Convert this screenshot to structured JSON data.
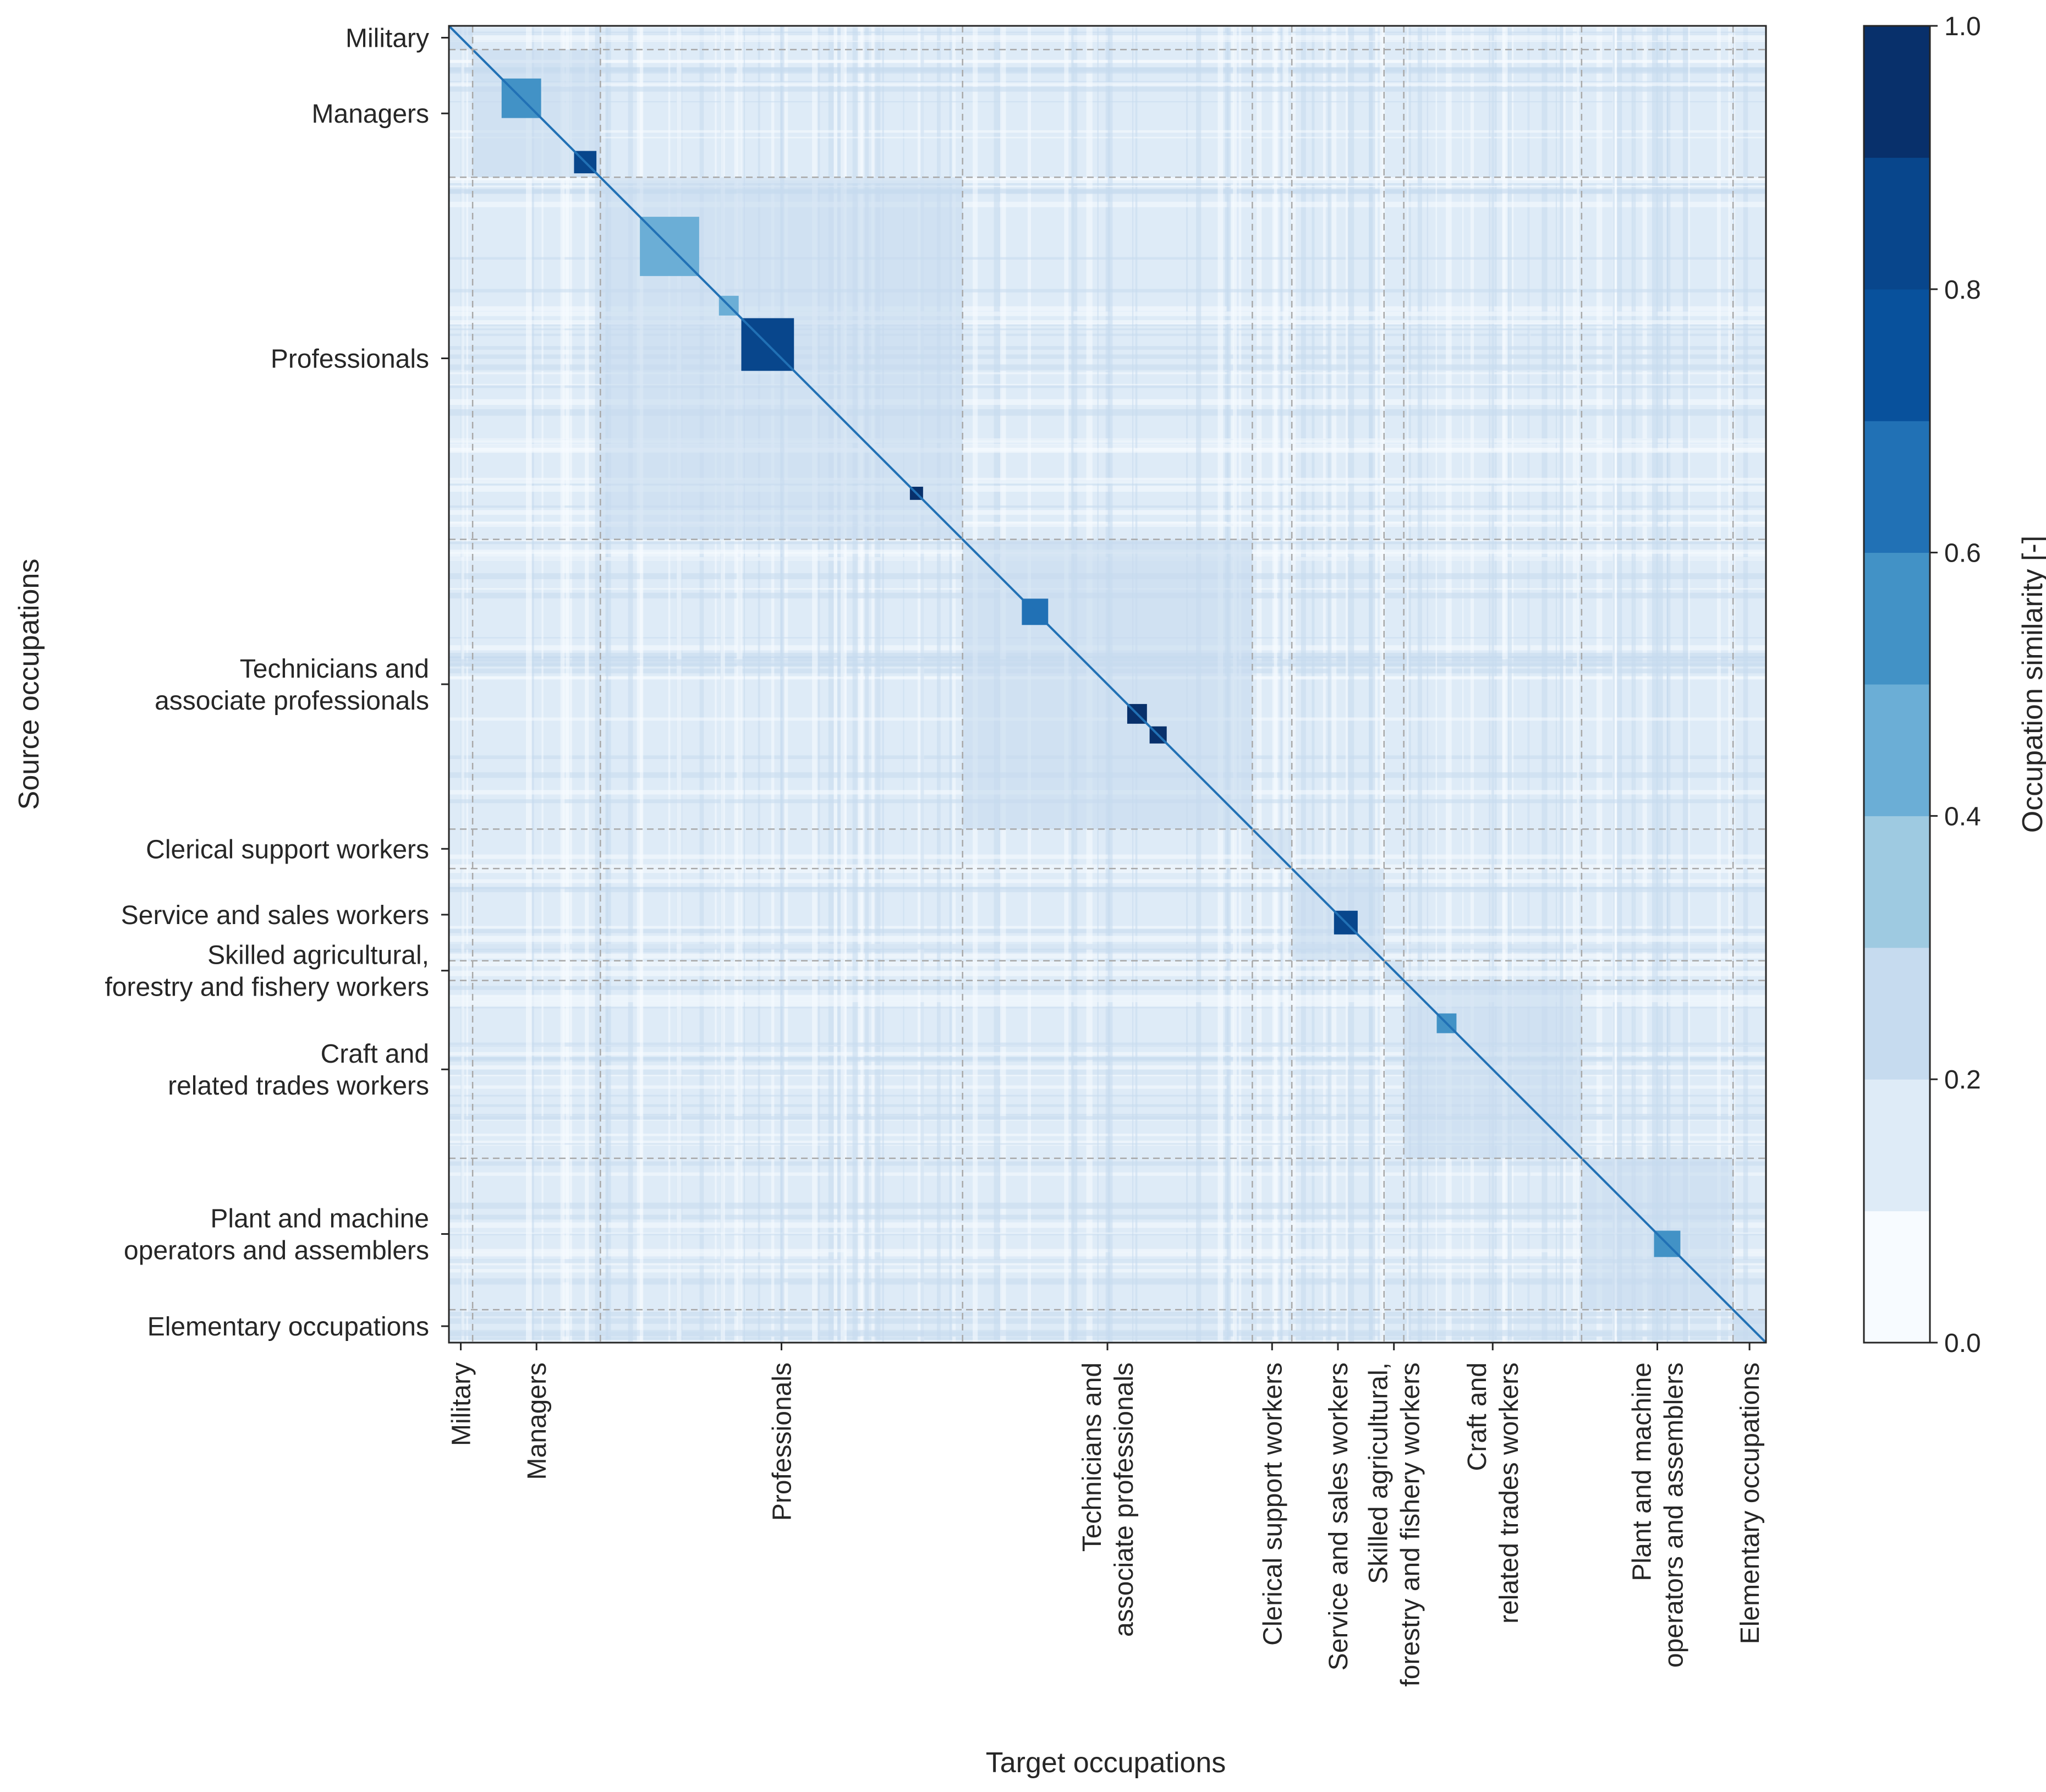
{
  "chart_data": {
    "type": "heatmap",
    "title": "",
    "xlabel": "Target occupations",
    "ylabel": "Source occupations",
    "colorbar": {
      "label": "Occupation similarity [-]",
      "range": [
        0.0,
        1.0
      ],
      "ticks": [
        "0.0",
        "0.2",
        "0.4",
        "0.6",
        "0.8",
        "1.0"
      ],
      "levels": 10,
      "colors": [
        "#f7fbff",
        "#deebf7",
        "#c6dbef",
        "#9ecae1",
        "#6baed6",
        "#4292c6",
        "#2171b5",
        "#08519c",
        "#08468c",
        "#08306b"
      ]
    },
    "groups": [
      {
        "name": "Military",
        "range": [
          0.0,
          0.018
        ]
      },
      {
        "name": "Managers",
        "range": [
          0.018,
          0.115
        ]
      },
      {
        "name": "Professionals",
        "range": [
          0.115,
          0.39
        ]
      },
      {
        "name": "Technicians and associate professionals",
        "range": [
          0.39,
          0.61
        ]
      },
      {
        "name": "Clerical support workers",
        "range": [
          0.61,
          0.64
        ]
      },
      {
        "name": "Service and sales workers",
        "range": [
          0.64,
          0.71
        ]
      },
      {
        "name": "Skilled agricultural, forestry and fishery workers",
        "range": [
          0.71,
          0.725
        ]
      },
      {
        "name": "Craft and related trades workers",
        "range": [
          0.725,
          0.86
        ]
      },
      {
        "name": "Plant and machine operators and assemblers",
        "range": [
          0.86,
          0.975
        ]
      },
      {
        "name": "Elementary occupations",
        "range": [
          0.975,
          1.0
        ]
      }
    ],
    "group_boundaries": [
      0.018,
      0.115,
      0.39,
      0.61,
      0.64,
      0.71,
      0.725,
      0.86,
      0.975
    ],
    "diagonal_similarity": 1.0,
    "dense_blocks": [
      {
        "group": "Managers",
        "range": [
          0.04,
          0.07
        ],
        "similarity": 0.55
      },
      {
        "group": "Managers",
        "range": [
          0.095,
          0.112
        ],
        "similarity": 0.85
      },
      {
        "group": "Professionals",
        "range": [
          0.145,
          0.19
        ],
        "similarity": 0.4
      },
      {
        "group": "Professionals",
        "range": [
          0.205,
          0.22
        ],
        "similarity": 0.45
      },
      {
        "group": "Professionals",
        "range": [
          0.222,
          0.262
        ],
        "similarity": 0.8
      },
      {
        "group": "Professionals",
        "range": [
          0.35,
          0.36
        ],
        "similarity": 0.95
      },
      {
        "group": "Technicians and associate professionals",
        "range": [
          0.435,
          0.455
        ],
        "similarity": 0.6
      },
      {
        "group": "Technicians and associate professionals",
        "range": [
          0.515,
          0.53
        ],
        "similarity": 0.95
      },
      {
        "group": "Technicians and associate professionals",
        "range": [
          0.532,
          0.545
        ],
        "similarity": 0.95
      },
      {
        "group": "Service and sales workers",
        "range": [
          0.672,
          0.69
        ],
        "similarity": 0.8
      },
      {
        "group": "Craft and related trades workers",
        "range": [
          0.75,
          0.765
        ],
        "similarity": 0.5
      },
      {
        "group": "Plant and machine operators and assemblers",
        "range": [
          0.915,
          0.935
        ],
        "similarity": 0.55
      }
    ]
  }
}
